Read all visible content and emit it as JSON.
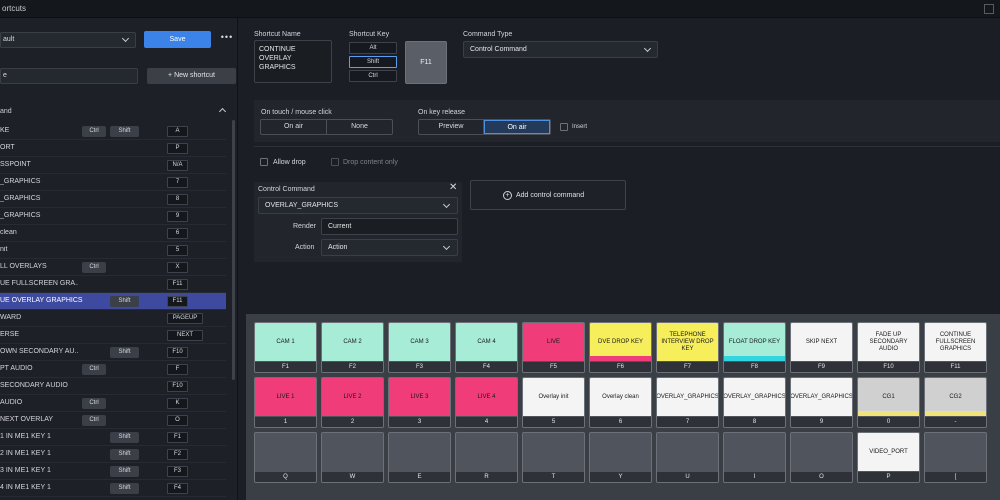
{
  "window": {
    "title": "ortcuts"
  },
  "sidebar": {
    "preset_value": "ault",
    "save_label": "Save",
    "more_label": "•••",
    "search_value": "e",
    "new_shortcut_label": "+  New shortcut",
    "column_header": "and",
    "rows": [
      {
        "name": "KE",
        "mod1": "Ctrl",
        "mod2": "Shift",
        "key": "A"
      },
      {
        "name": "ORT",
        "mod1": "",
        "mod2": "",
        "key": "P"
      },
      {
        "name": "SSPOINT",
        "mod1": "",
        "mod2": "",
        "key": "N/A"
      },
      {
        "name": "_GRAPHICS",
        "mod1": "",
        "mod2": "",
        "key": "7"
      },
      {
        "name": "_GRAPHICS",
        "mod1": "",
        "mod2": "",
        "key": "8"
      },
      {
        "name": "_GRAPHICS",
        "mod1": "",
        "mod2": "",
        "key": "9"
      },
      {
        "name": "clean",
        "mod1": "",
        "mod2": "",
        "key": "6"
      },
      {
        "name": "nit",
        "mod1": "",
        "mod2": "",
        "key": "5"
      },
      {
        "name": "LL OVERLAYS",
        "mod1": "Ctrl",
        "mod2": "",
        "key": "X"
      },
      {
        "name": "UE FULLSCREEN GRA...",
        "mod1": "",
        "mod2": "",
        "key": "F11"
      },
      {
        "name": "UE OVERLAY GRAPHICS",
        "mod1": "",
        "mod2": "Shift",
        "key": "F11"
      },
      {
        "name": "WARD",
        "mod1": "",
        "mod2": "",
        "key": "PAGEUP"
      },
      {
        "name": "ERSE",
        "mod1": "",
        "mod2": "",
        "key": "NEXT"
      },
      {
        "name": "OWN SECONDARY AU...",
        "mod1": "",
        "mod2": "Shift",
        "key": "F10"
      },
      {
        "name": "PT AUDIO",
        "mod1": "Ctrl",
        "mod2": "",
        "key": "F"
      },
      {
        "name": "SECONDARY AUDIO",
        "mod1": "",
        "mod2": "",
        "key": "F10"
      },
      {
        "name": "AUDIO",
        "mod1": "Ctrl",
        "mod2": "",
        "key": "K"
      },
      {
        "name": "NEXT OVERLAY",
        "mod1": "Ctrl",
        "mod2": "",
        "key": "O"
      },
      {
        "name": "1 IN ME1 KEY 1",
        "mod1": "",
        "mod2": "Shift",
        "key": "F1"
      },
      {
        "name": "2 IN ME1 KEY 1",
        "mod1": "",
        "mod2": "Shift",
        "key": "F2"
      },
      {
        "name": "3 IN ME1 KEY 1",
        "mod1": "",
        "mod2": "Shift",
        "key": "F3"
      },
      {
        "name": "4 IN ME1 KEY 1",
        "mod1": "",
        "mod2": "Shift",
        "key": "F4"
      }
    ]
  },
  "editor": {
    "shortcut_name_label": "Shortcut Name",
    "shortcut_name_value": "CONTINUE OVERLAY GRAPHICS",
    "shortcut_key_label": "Shortcut Key",
    "modifiers": {
      "alt": "Alt",
      "shift": "Shift",
      "ctrl": "Ctrl"
    },
    "key_value": "F11",
    "command_type_label": "Command Type",
    "command_type_value": "Control Command",
    "on_touch_label": "On touch / mouse click",
    "on_touch_options": [
      "On air",
      "None"
    ],
    "on_release_label": "On key release",
    "on_release_options": [
      "Preview",
      "On air"
    ],
    "insert_label": "Insert",
    "allow_drop_label": "Allow drop",
    "drop_content_only_label": "Drop content only",
    "control_command_label": "Control Command",
    "control_command_value": "OVERLAY_GRAPHICS",
    "render_label": "Render",
    "render_value": "Current",
    "action_label": "Action",
    "action_value": "Action",
    "close_label": "✕",
    "add_control_command_label": "Add control command",
    "add_icon_glyph": "+"
  },
  "keyboard": {
    "rows": [
      [
        {
          "label": "CAM 1",
          "key": "F1",
          "color": "#a6ecd6"
        },
        {
          "label": "CAM 2",
          "key": "F2",
          "color": "#a6ecd6"
        },
        {
          "label": "CAM 3",
          "key": "F3",
          "color": "#a6ecd6"
        },
        {
          "label": "CAM 4",
          "key": "F4",
          "color": "#a6ecd6"
        },
        {
          "label": "LIVE",
          "key": "F5",
          "color": "#f03c78"
        },
        {
          "label": "DVE DROP KEY",
          "key": "F6",
          "color": "#f6ee5a",
          "strip": "#f03c78"
        },
        {
          "label": "TELEPHONE INTERVIEW DROP KEY",
          "key": "F7",
          "color": "#f6ee5a"
        },
        {
          "label": "FLOAT DROP KEY",
          "key": "F8",
          "color": "#a6ecd6",
          "strip": "#33d6e0"
        },
        {
          "label": "SKIP NEXT",
          "key": "F9",
          "color": "#f4f4f4"
        },
        {
          "label": "FADE UP SECONDARY AUDIO",
          "key": "F10",
          "color": "#f4f4f4"
        },
        {
          "label": "CONTINUE FULLSCREEN GRAPHICS",
          "key": "F11",
          "color": "#f4f4f4"
        }
      ],
      [
        {
          "label": "LIVE 1",
          "key": "1",
          "color": "#f03c78"
        },
        {
          "label": "LIVE 2",
          "key": "2",
          "color": "#f03c78"
        },
        {
          "label": "LIVE 3",
          "key": "3",
          "color": "#f03c78"
        },
        {
          "label": "LIVE 4",
          "key": "4",
          "color": "#f03c78"
        },
        {
          "label": "Overlay init",
          "key": "5",
          "color": "#f4f4f4"
        },
        {
          "label": "Overlay clean",
          "key": "6",
          "color": "#f4f4f4"
        },
        {
          "label": "OVERLAY_GRAPHICS",
          "key": "7",
          "color": "#f4f4f4"
        },
        {
          "label": "OVERLAY_GRAPHICS",
          "key": "8",
          "color": "#f4f4f4"
        },
        {
          "label": "OVERLAY_GRAPHICS",
          "key": "9",
          "color": "#f4f4f4"
        },
        {
          "label": "CG1",
          "key": "0",
          "color": "#d0d0d0",
          "strip": "#f2e27a"
        },
        {
          "label": "CG2",
          "key": "-",
          "color": "#d0d0d0",
          "strip": "#f2e27a"
        }
      ],
      [
        {
          "label": "",
          "key": "Q",
          "color": "#50555d"
        },
        {
          "label": "",
          "key": "W",
          "color": "#50555d"
        },
        {
          "label": "",
          "key": "E",
          "color": "#50555d"
        },
        {
          "label": "",
          "key": "R",
          "color": "#50555d"
        },
        {
          "label": "",
          "key": "T",
          "color": "#50555d"
        },
        {
          "label": "",
          "key": "Y",
          "color": "#50555d"
        },
        {
          "label": "",
          "key": "U",
          "color": "#50555d"
        },
        {
          "label": "",
          "key": "I",
          "color": "#50555d"
        },
        {
          "label": "",
          "key": "O",
          "color": "#50555d"
        },
        {
          "label": "VIDEO_PORT",
          "key": "P",
          "color": "#f4f4f4"
        },
        {
          "label": "",
          "key": "[",
          "color": "#50555d"
        }
      ]
    ]
  }
}
